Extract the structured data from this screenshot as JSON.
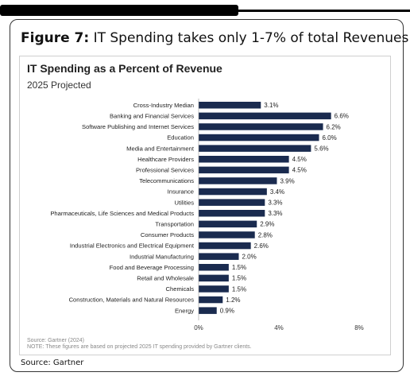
{
  "figure": {
    "label": "Figure 7:",
    "title": "IT Spending takes only 1-7% of total Revenues"
  },
  "chart_data": {
    "type": "bar",
    "orientation": "horizontal",
    "title": "IT Spending as a Percent of Revenue",
    "subtitle": "2025 Projected",
    "categories": [
      "Cross-Industry Median",
      "Banking and Financial Services",
      "Software Publishing and Internet Services",
      "Education",
      "Media and Entertainment",
      "Healthcare Providers",
      "Professional Services",
      "Telecommunications",
      "Insurance",
      "Utilities",
      "Pharmaceuticals, Life Sciences and Medical Products",
      "Transportation",
      "Consumer Products",
      "Industrial Electronics and Electrical Equipment",
      "Industrial Manufacturing",
      "Food and Beverage Processing",
      "Retail and Wholesale",
      "Chemicals",
      "Construction, Materials and Natural Resources",
      "Energy"
    ],
    "values": [
      3.1,
      6.6,
      6.2,
      6.0,
      5.6,
      4.5,
      4.5,
      3.9,
      3.4,
      3.3,
      3.3,
      2.9,
      2.8,
      2.6,
      2.0,
      1.5,
      1.5,
      1.5,
      1.2,
      0.9
    ],
    "value_labels": [
      "3.1%",
      "6.6%",
      "6.2%",
      "6.0%",
      "5.6%",
      "4.5%",
      "4.5%",
      "3.9%",
      "3.4%",
      "3.3%",
      "3.3%",
      "2.9%",
      "2.8%",
      "2.6%",
      "2.0%",
      "1.5%",
      "1.5%",
      "1.5%",
      "1.2%",
      "0.9%"
    ],
    "xlim": [
      0,
      8
    ],
    "x_ticks": [
      0,
      4,
      8
    ],
    "x_tick_labels": [
      "0%",
      "4%",
      "8%"
    ],
    "grid": false,
    "bar_color": "#1a2b4f"
  },
  "notes": {
    "source_line": "Source: Gartner (2024)",
    "note_line": "NOTE: These figures are based on projected 2025 IT spending provided by Gartner clients."
  },
  "source": "Source: Gartner"
}
